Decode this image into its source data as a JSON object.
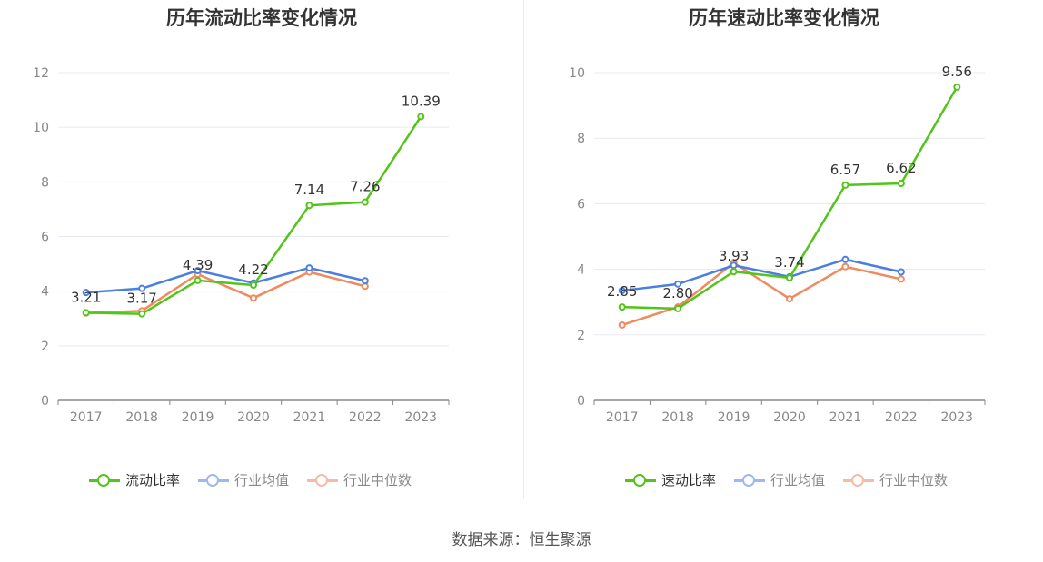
{
  "source": "数据来源：恒生聚源",
  "colors": {
    "main": "#52c41a",
    "avg": "#4a7fe0",
    "median": "#f08a5d",
    "grid": "#e6e9f5",
    "axis": "#888888",
    "tick": "#888888",
    "label": "#333333"
  },
  "chart_data": [
    {
      "type": "line",
      "title": "历年流动比率变化情况",
      "categories": [
        "2017",
        "2018",
        "2019",
        "2020",
        "2021",
        "2022",
        "2023"
      ],
      "ylim": [
        0,
        12
      ],
      "yticks": [
        0,
        2,
        4,
        6,
        8,
        10,
        12
      ],
      "grid": true,
      "legend_position": "bottom",
      "series": [
        {
          "name": "流动比率",
          "color": "#52c41a",
          "values": [
            3.21,
            3.17,
            4.39,
            4.22,
            7.14,
            7.26,
            10.39
          ],
          "labels": [
            "3.21",
            "3.17",
            "4.39",
            "4.22",
            "7.14",
            "7.26",
            "10.39"
          ]
        },
        {
          "name": "行业均值",
          "color": "#4a7fe0",
          "values": [
            3.95,
            4.1,
            4.75,
            4.3,
            4.85,
            4.38,
            null
          ]
        },
        {
          "name": "行业中位数",
          "color": "#f08a5d",
          "values": [
            3.2,
            3.28,
            4.62,
            3.75,
            4.7,
            4.18,
            null
          ]
        }
      ]
    },
    {
      "type": "line",
      "title": "历年速动比率变化情况",
      "categories": [
        "2017",
        "2018",
        "2019",
        "2020",
        "2021",
        "2022",
        "2023"
      ],
      "ylim": [
        0,
        10
      ],
      "yticks": [
        0,
        2,
        4,
        6,
        8,
        10
      ],
      "grid": true,
      "legend_position": "bottom",
      "series": [
        {
          "name": "速动比率",
          "color": "#52c41a",
          "values": [
            2.85,
            2.8,
            3.93,
            3.74,
            6.57,
            6.62,
            9.56
          ],
          "labels": [
            "2.85",
            "2.80",
            "3.93",
            "3.74",
            "6.57",
            "6.62",
            "9.56"
          ]
        },
        {
          "name": "行业均值",
          "color": "#4a7fe0",
          "values": [
            3.35,
            3.55,
            4.12,
            3.77,
            4.3,
            3.92,
            null
          ]
        },
        {
          "name": "行业中位数",
          "color": "#f08a5d",
          "values": [
            2.3,
            2.85,
            4.2,
            3.1,
            4.08,
            3.7,
            null
          ]
        }
      ]
    }
  ]
}
